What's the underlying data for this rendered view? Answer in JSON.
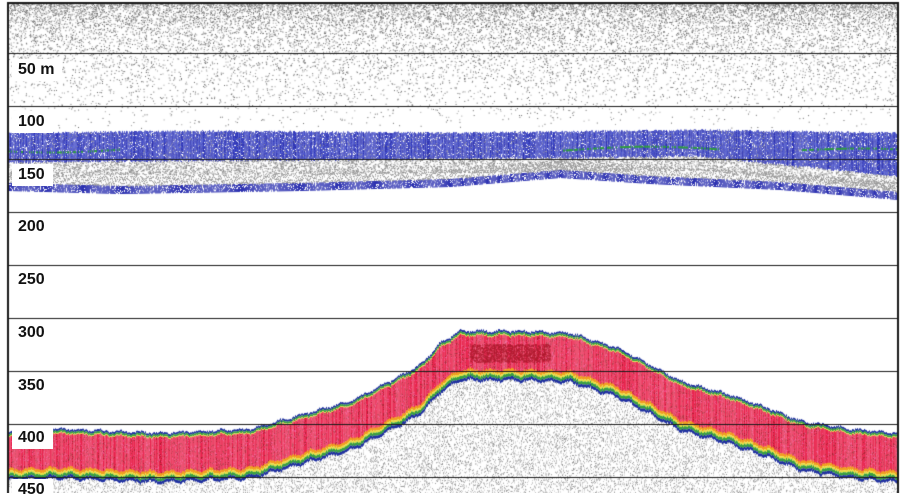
{
  "echogram": {
    "depth_labels": [
      "50 m",
      "100",
      "150",
      "200",
      "250",
      "300",
      "350",
      "400",
      "450"
    ],
    "depth_scale": {
      "start": 0,
      "end": 450,
      "unit": "m",
      "gridline_interval": 50
    },
    "colors": {
      "background": "#ffffff",
      "gridline": "#1a1a1a",
      "frame": "#1a1a1a",
      "noise": "#555555",
      "scattering_blue": "#2a2fb0",
      "scattering_green": "#2e9a40",
      "seabed_red": "#e8204a",
      "seabed_dark_red": "#b01c30",
      "seabed_orange": "#f0a020",
      "seabed_yellow": "#e8e040",
      "seabed_green": "#3aa040",
      "seabed_edge_blue": "#2030a0",
      "subbottom_grey": "#9a9a9a"
    }
  }
}
